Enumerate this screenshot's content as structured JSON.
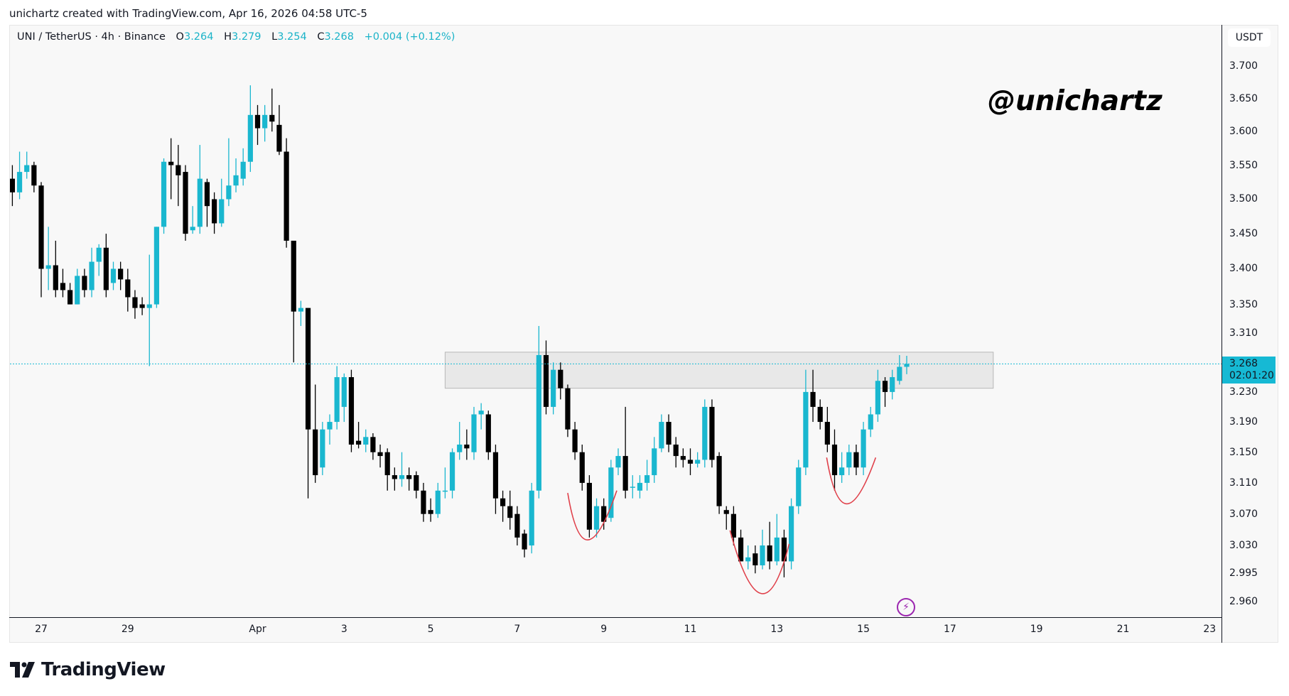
{
  "credit": "unichartz created with TradingView.com, Apr 16, 2026 04:58 UTC-5",
  "legend": {
    "symbol": "UNI / TetherUS · 4h · Binance",
    "o_label": "O",
    "o": "3.264",
    "h_label": "H",
    "h": "3.279",
    "l_label": "L",
    "l": "3.254",
    "c_label": "C",
    "c": "3.268",
    "change": "+0.004 (+0.12%)"
  },
  "currency": "USDT",
  "current_price": {
    "price": "3.268",
    "countdown": "02:01:20",
    "value": 3.268
  },
  "watermark": "@unichartz",
  "logo": "TradingView",
  "colors": {
    "up": "#1ab7cf",
    "down": "#000000",
    "zone": "#e3e3e3",
    "curve": "#e0404a",
    "accent": "#16b9d4",
    "bolt": "#9c27b0"
  },
  "icons": {
    "alert": "lightning-icon"
  },
  "chart_data": {
    "type": "candlestick",
    "timeframe": "4h",
    "scale": "log",
    "ylim": [
      2.96,
      3.7
    ],
    "price_ticks": [
      "3.700",
      "3.650",
      "3.600",
      "3.550",
      "3.500",
      "3.450",
      "3.400",
      "3.350",
      "3.310",
      "3.230",
      "3.190",
      "3.150",
      "3.110",
      "3.070",
      "3.030",
      "2.995",
      "2.960"
    ],
    "time_ticks": [
      {
        "label": "27",
        "index": 4
      },
      {
        "label": "29",
        "index": 16
      },
      {
        "label": "Apr",
        "index": 34
      },
      {
        "label": "3",
        "index": 46
      },
      {
        "label": "5",
        "index": 58
      },
      {
        "label": "7",
        "index": 70
      },
      {
        "label": "9",
        "index": 82
      },
      {
        "label": "11",
        "index": 94
      },
      {
        "label": "13",
        "index": 106
      },
      {
        "label": "15",
        "index": 118
      },
      {
        "label": "17",
        "index": 130
      },
      {
        "label": "19",
        "index": 142
      },
      {
        "label": "21",
        "index": 154
      },
      {
        "label": "23",
        "index": 166
      }
    ],
    "ohlc": [
      [
        3.53,
        3.55,
        3.49,
        3.51
      ],
      [
        3.51,
        3.57,
        3.5,
        3.54
      ],
      [
        3.54,
        3.57,
        3.53,
        3.55
      ],
      [
        3.55,
        3.555,
        3.51,
        3.52
      ],
      [
        3.52,
        3.525,
        3.36,
        3.4
      ],
      [
        3.4,
        3.46,
        3.37,
        3.405
      ],
      [
        3.405,
        3.44,
        3.36,
        3.37
      ],
      [
        3.38,
        3.4,
        3.36,
        3.37
      ],
      [
        3.37,
        3.38,
        3.35,
        3.35
      ],
      [
        3.35,
        3.4,
        3.35,
        3.39
      ],
      [
        3.39,
        3.4,
        3.36,
        3.37
      ],
      [
        3.37,
        3.43,
        3.36,
        3.41
      ],
      [
        3.41,
        3.435,
        3.39,
        3.43
      ],
      [
        3.43,
        3.45,
        3.36,
        3.37
      ],
      [
        3.38,
        3.41,
        3.37,
        3.4
      ],
      [
        3.4,
        3.41,
        3.37,
        3.385
      ],
      [
        3.385,
        3.4,
        3.34,
        3.36
      ],
      [
        3.36,
        3.37,
        3.33,
        3.345
      ],
      [
        3.35,
        3.36,
        3.335,
        3.345
      ],
      [
        3.345,
        3.42,
        3.265,
        3.35
      ],
      [
        3.35,
        3.46,
        3.345,
        3.46
      ],
      [
        3.46,
        3.56,
        3.45,
        3.555
      ],
      [
        3.555,
        3.59,
        3.5,
        3.55
      ],
      [
        3.55,
        3.58,
        3.49,
        3.535
      ],
      [
        3.54,
        3.55,
        3.44,
        3.45
      ],
      [
        3.455,
        3.49,
        3.45,
        3.46
      ],
      [
        3.46,
        3.58,
        3.45,
        3.53
      ],
      [
        3.525,
        3.53,
        3.46,
        3.49
      ],
      [
        3.5,
        3.51,
        3.45,
        3.465
      ],
      [
        3.465,
        3.53,
        3.46,
        3.5
      ],
      [
        3.5,
        3.59,
        3.49,
        3.52
      ],
      [
        3.52,
        3.56,
        3.51,
        3.535
      ],
      [
        3.53,
        3.575,
        3.52,
        3.555
      ],
      [
        3.555,
        3.67,
        3.54,
        3.625
      ],
      [
        3.625,
        3.64,
        3.58,
        3.605
      ],
      [
        3.605,
        3.64,
        3.585,
        3.625
      ],
      [
        3.625,
        3.665,
        3.6,
        3.615
      ],
      [
        3.61,
        3.64,
        3.565,
        3.57
      ],
      [
        3.57,
        3.59,
        3.43,
        3.44
      ],
      [
        3.44,
        3.44,
        3.27,
        3.34
      ],
      [
        3.34,
        3.355,
        3.32,
        3.345
      ],
      [
        3.345,
        3.345,
        3.09,
        3.18
      ],
      [
        3.18,
        3.24,
        3.11,
        3.12
      ],
      [
        3.13,
        3.19,
        3.12,
        3.18
      ],
      [
        3.18,
        3.2,
        3.16,
        3.19
      ],
      [
        3.19,
        3.265,
        3.18,
        3.25
      ],
      [
        3.21,
        3.255,
        3.19,
        3.25
      ],
      [
        3.25,
        3.26,
        3.15,
        3.16
      ],
      [
        3.165,
        3.19,
        3.155,
        3.16
      ],
      [
        3.16,
        3.18,
        3.15,
        3.17
      ],
      [
        3.17,
        3.175,
        3.14,
        3.15
      ],
      [
        3.15,
        3.16,
        3.13,
        3.145
      ],
      [
        3.15,
        3.155,
        3.1,
        3.12
      ],
      [
        3.12,
        3.13,
        3.1,
        3.115
      ],
      [
        3.115,
        3.15,
        3.105,
        3.12
      ],
      [
        3.12,
        3.13,
        3.1,
        3.115
      ],
      [
        3.12,
        3.125,
        3.09,
        3.1
      ],
      [
        3.1,
        3.11,
        3.06,
        3.07
      ],
      [
        3.075,
        3.09,
        3.06,
        3.07
      ],
      [
        3.07,
        3.11,
        3.065,
        3.1
      ],
      [
        3.1,
        3.13,
        3.09,
        3.1
      ],
      [
        3.1,
        3.155,
        3.09,
        3.15
      ],
      [
        3.15,
        3.19,
        3.14,
        3.16
      ],
      [
        3.16,
        3.18,
        3.14,
        3.155
      ],
      [
        3.15,
        3.21,
        3.14,
        3.2
      ],
      [
        3.2,
        3.215,
        3.18,
        3.205
      ],
      [
        3.2,
        3.205,
        3.14,
        3.15
      ],
      [
        3.15,
        3.16,
        3.07,
        3.09
      ],
      [
        3.09,
        3.1,
        3.06,
        3.08
      ],
      [
        3.08,
        3.1,
        3.05,
        3.065
      ],
      [
        3.07,
        3.08,
        3.03,
        3.04
      ],
      [
        3.045,
        3.05,
        3.015,
        3.025
      ],
      [
        3.03,
        3.11,
        3.02,
        3.1
      ],
      [
        3.1,
        3.32,
        3.09,
        3.28
      ],
      [
        3.28,
        3.3,
        3.2,
        3.21
      ],
      [
        3.21,
        3.27,
        3.2,
        3.26
      ],
      [
        3.26,
        3.27,
        3.22,
        3.235
      ],
      [
        3.235,
        3.24,
        3.17,
        3.18
      ],
      [
        3.18,
        3.19,
        3.14,
        3.15
      ],
      [
        3.15,
        3.16,
        3.1,
        3.11
      ],
      [
        3.11,
        3.12,
        3.04,
        3.05
      ],
      [
        3.05,
        3.09,
        3.04,
        3.08
      ],
      [
        3.08,
        3.09,
        3.05,
        3.06
      ],
      [
        3.065,
        3.14,
        3.06,
        3.13
      ],
      [
        3.13,
        3.155,
        3.12,
        3.145
      ],
      [
        3.145,
        3.21,
        3.09,
        3.1
      ],
      [
        3.105,
        3.12,
        3.09,
        3.105
      ],
      [
        3.1,
        3.12,
        3.09,
        3.11
      ],
      [
        3.11,
        3.14,
        3.1,
        3.12
      ],
      [
        3.12,
        3.17,
        3.11,
        3.155
      ],
      [
        3.155,
        3.2,
        3.15,
        3.19
      ],
      [
        3.19,
        3.2,
        3.15,
        3.16
      ],
      [
        3.16,
        3.17,
        3.13,
        3.145
      ],
      [
        3.145,
        3.155,
        3.13,
        3.14
      ],
      [
        3.14,
        3.155,
        3.12,
        3.135
      ],
      [
        3.135,
        3.15,
        3.13,
        3.14
      ],
      [
        3.14,
        3.22,
        3.13,
        3.21
      ],
      [
        3.21,
        3.22,
        3.13,
        3.14
      ],
      [
        3.145,
        3.15,
        3.07,
        3.08
      ],
      [
        3.075,
        3.08,
        3.05,
        3.07
      ],
      [
        3.07,
        3.08,
        3.03,
        3.04
      ],
      [
        3.04,
        3.05,
        3.01,
        3.01
      ],
      [
        3.01,
        3.03,
        3.0,
        3.015
      ],
      [
        3.02,
        3.03,
        2.995,
        3.005
      ],
      [
        3.005,
        3.05,
        3.0,
        3.03
      ],
      [
        3.03,
        3.06,
        3.0,
        3.01
      ],
      [
        3.01,
        3.07,
        3.005,
        3.04
      ],
      [
        3.04,
        3.05,
        2.99,
        3.01
      ],
      [
        3.01,
        3.09,
        3.0,
        3.08
      ],
      [
        3.08,
        3.14,
        3.07,
        3.13
      ],
      [
        3.13,
        3.26,
        3.12,
        3.23
      ],
      [
        3.23,
        3.26,
        3.19,
        3.21
      ],
      [
        3.21,
        3.22,
        3.18,
        3.19
      ],
      [
        3.19,
        3.21,
        3.15,
        3.16
      ],
      [
        3.16,
        3.18,
        3.1,
        3.12
      ],
      [
        3.12,
        3.15,
        3.11,
        3.13
      ],
      [
        3.13,
        3.16,
        3.12,
        3.15
      ],
      [
        3.15,
        3.16,
        3.12,
        3.13
      ],
      [
        3.13,
        3.19,
        3.12,
        3.18
      ],
      [
        3.18,
        3.21,
        3.17,
        3.2
      ],
      [
        3.2,
        3.26,
        3.19,
        3.245
      ],
      [
        3.245,
        3.25,
        3.21,
        3.23
      ],
      [
        3.23,
        3.26,
        3.22,
        3.25
      ],
      [
        3.245,
        3.28,
        3.24,
        3.264
      ],
      [
        3.264,
        3.279,
        3.254,
        3.268
      ]
    ],
    "annotations": {
      "resistance_zone": {
        "index_from": 60,
        "index_to": 136,
        "price_top": 3.284,
        "price_bottom": 3.235
      },
      "curves": [
        [
          [
            77,
            3.097
          ],
          [
            79.8,
            3.037
          ],
          [
            83.8,
            3.1
          ]
        ],
        [
          [
            99.5,
            3.049
          ],
          [
            103.8,
            2.97
          ],
          [
            107.7,
            3.032
          ]
        ],
        [
          [
            112.9,
            3.143
          ],
          [
            115.7,
            3.083
          ],
          [
            119.7,
            3.143
          ]
        ]
      ]
    }
  }
}
